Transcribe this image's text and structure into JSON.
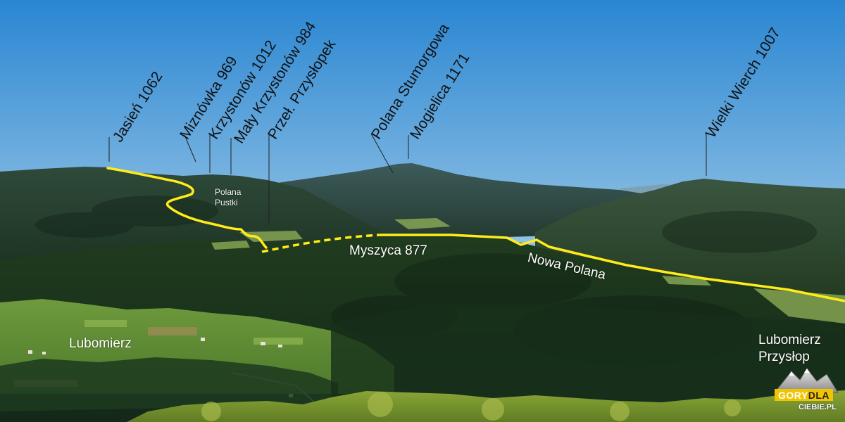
{
  "peaks": [
    {
      "id": "jasien",
      "label": "Jasień 1062"
    },
    {
      "id": "miznowka",
      "label": "Miznówka 969"
    },
    {
      "id": "krzystonow",
      "label": "Krzystonów 1012"
    },
    {
      "id": "maly-krzystonow",
      "label": "Mały Krzystonów 984"
    },
    {
      "id": "przel-przyslopek",
      "label": "Przeł. Przysłopek"
    },
    {
      "id": "polana-stumorgowa",
      "label": "Polana Stumorgowa"
    },
    {
      "id": "mogielica",
      "label": "Mogielica 1171"
    },
    {
      "id": "wielki-wierch",
      "label": "Wielki Wierch 1007"
    }
  ],
  "places": {
    "polana_pustki_line1": "Polana",
    "polana_pustki_line2": "Pustki",
    "myszyca": "Myszyca 877",
    "nowa_polana": "Nowa Polana",
    "lubomierz": "Lubomierz",
    "lubomierz_przyslop_line1": "Lubomierz",
    "lubomierz_przyslop_line2": "Przysłop"
  },
  "logo": {
    "part1": "GORY",
    "part2": "DLA",
    "part3": "CIEBIE.PL"
  },
  "colors": {
    "sky_top": "#1f82d0",
    "sky_bottom": "#c7dde8",
    "trail": "#ffec1a",
    "forest": "#1c3a1f"
  }
}
